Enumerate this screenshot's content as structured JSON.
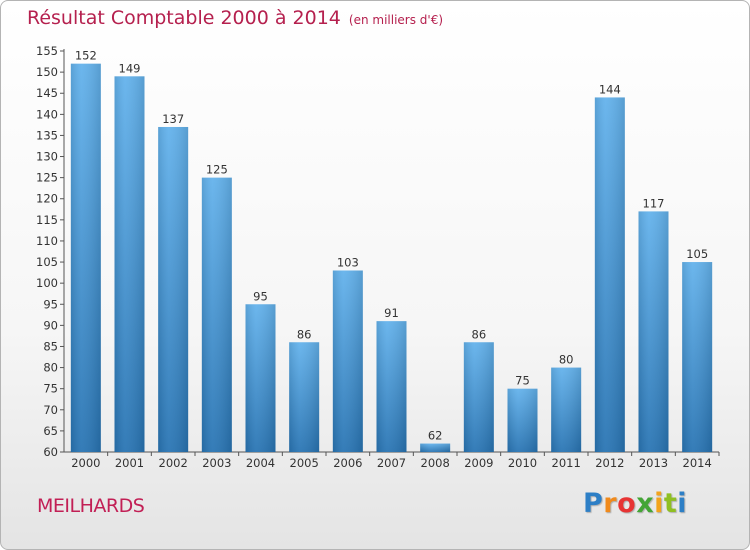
{
  "header": {
    "title": "Résultat Comptable 2000 à 2014",
    "unit": "(en milliers d'€)"
  },
  "footer": {
    "commune": "MEILHARDS",
    "logo": "Proxiti"
  },
  "colors": {
    "title": "#b5204e",
    "bar_light": "#63b2ec",
    "bar_dark": "#2874b3",
    "axis": "#555555"
  },
  "chart_data": {
    "type": "bar",
    "title": "Résultat Comptable 2000 à 2014",
    "subtitle": "(en milliers d'€)",
    "xlabel": "",
    "ylabel": "",
    "categories": [
      "2000",
      "2001",
      "2002",
      "2003",
      "2004",
      "2005",
      "2006",
      "2007",
      "2008",
      "2009",
      "2010",
      "2011",
      "2012",
      "2013",
      "2014"
    ],
    "values": [
      152,
      149,
      137,
      125,
      95,
      86,
      103,
      91,
      62,
      86,
      75,
      80,
      144,
      117,
      105
    ],
    "ylim": [
      60,
      155
    ],
    "yticks": [
      60,
      65,
      70,
      75,
      80,
      85,
      90,
      95,
      100,
      105,
      110,
      115,
      120,
      125,
      130,
      135,
      140,
      145,
      150,
      155
    ],
    "grid": false,
    "legend": "none",
    "data_labels": true
  }
}
